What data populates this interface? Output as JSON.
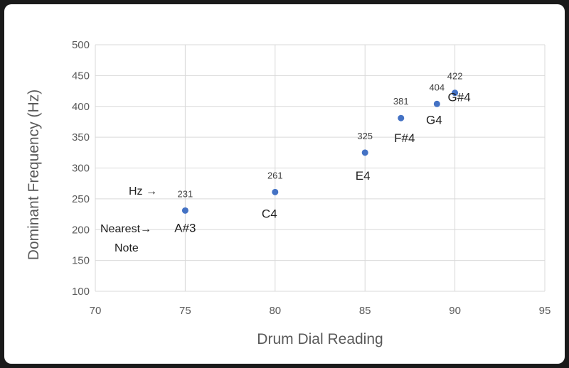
{
  "chart_data": {
    "type": "scatter",
    "xlabel": "Drum Dial Reading",
    "ylabel": "Dominant Frequency (Hz)",
    "xlim": [
      70,
      95
    ],
    "ylim": [
      100,
      500
    ],
    "x_ticks": [
      70,
      75,
      80,
      85,
      90,
      95
    ],
    "y_ticks": [
      100,
      150,
      200,
      250,
      300,
      350,
      400,
      450,
      500
    ],
    "grid": true,
    "marker_color": "#4472C4",
    "points": [
      {
        "x": 75,
        "y": 231,
        "label": "231",
        "note": "A#3"
      },
      {
        "x": 80,
        "y": 261,
        "label": "261",
        "note": "C4"
      },
      {
        "x": 85,
        "y": 325,
        "label": "325",
        "note": "E4"
      },
      {
        "x": 87,
        "y": 381,
        "label": "381",
        "note": "F#4"
      },
      {
        "x": 89,
        "y": 404,
        "label": "404",
        "note": "G4"
      },
      {
        "x": 90,
        "y": 422,
        "label": "422",
        "note": "G#4"
      }
    ],
    "annotations": {
      "hz_label": "Hz →",
      "nearest_label": "Nearest→",
      "note_label": "Note"
    }
  }
}
